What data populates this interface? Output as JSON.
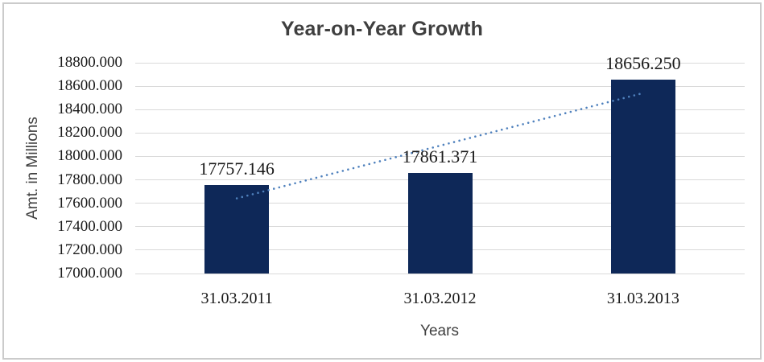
{
  "chart_data": {
    "type": "bar",
    "title": "Year-on-Year Growth",
    "xlabel": "Years",
    "ylabel": "Amt. in Millions",
    "categories": [
      "31.03.2011",
      "31.03.2012",
      "31.03.2013"
    ],
    "values": [
      17757.146,
      17861.371,
      18656.25
    ],
    "data_labels": [
      "17757.146",
      "17861.371",
      "18656.250"
    ],
    "ylim": [
      17000,
      18800
    ],
    "ytick_step": 200,
    "ytick_labels": [
      "18800.000",
      "18600.000",
      "18400.000",
      "18200.000",
      "18000.000",
      "17800.000",
      "17600.000",
      "17400.000",
      "17200.000",
      "17000.000"
    ],
    "grid": true,
    "legend": "none",
    "trendline": {
      "style": "dotted",
      "start_value": 17642.05,
      "end_value": 18541.15
    },
    "colors": {
      "bar": "#0e2858",
      "trendline": "#4f81bd",
      "gridline": "#d9d9d9",
      "title": "#3f3f3f",
      "axis_text": "#1a1a1a",
      "frame_border": "#cbcbcb",
      "background": "#ffffff"
    }
  }
}
